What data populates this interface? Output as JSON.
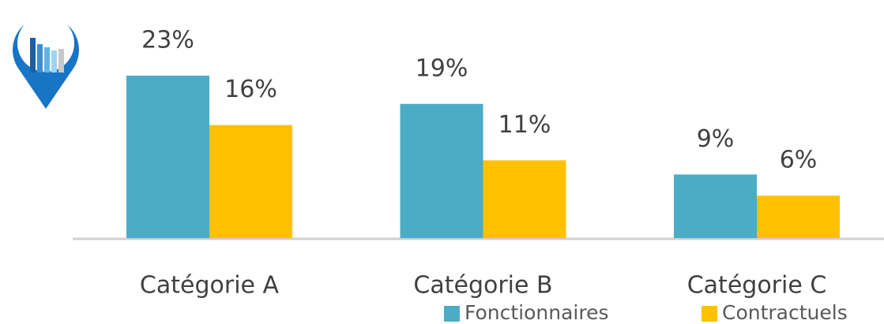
{
  "chart_data": {
    "type": "bar",
    "categories": [
      "Catégorie A",
      "Catégorie B",
      "Catégorie C"
    ],
    "series": [
      {
        "name": "Fonctionnaires",
        "color": "#4bacc6",
        "values": [
          23,
          19,
          9
        ],
        "value_labels": [
          "23%",
          "19%",
          "9%"
        ]
      },
      {
        "name": "Contractuels",
        "color": "#ffc000",
        "values": [
          16,
          11,
          6
        ],
        "value_labels": [
          "16%",
          "11%",
          "6%"
        ]
      }
    ],
    "ylim": [
      0,
      25
    ]
  }
}
